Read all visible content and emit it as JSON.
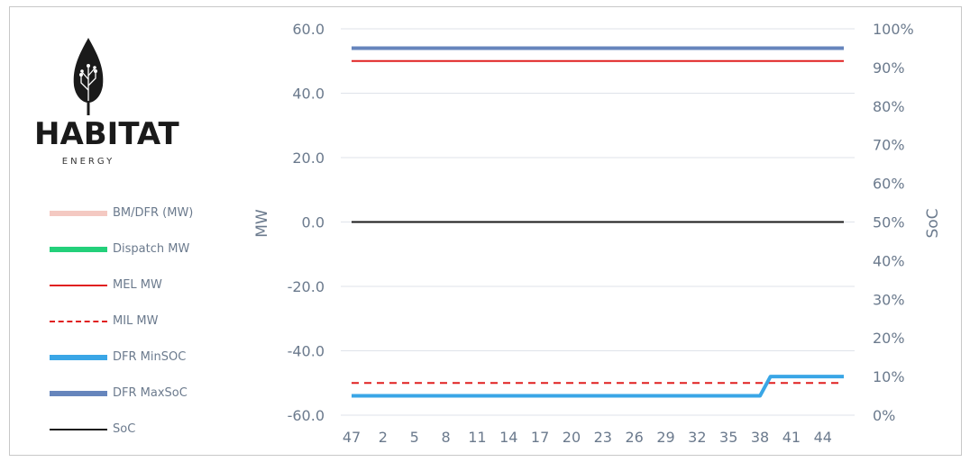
{
  "brand": {
    "name": "HABITAT",
    "subtitle": "ENERGY"
  },
  "legend": [
    {
      "label": "BM/DFR (MW)",
      "color": "#f4c9c2",
      "style": "thick"
    },
    {
      "label": "Dispatch MW",
      "color": "#23d07a",
      "style": "thick"
    },
    {
      "label": "MEL MW",
      "color": "#e02020",
      "style": "solid"
    },
    {
      "label": "MIL MW",
      "color": "#e02020",
      "style": "dashed"
    },
    {
      "label": "DFR MinSOC",
      "color": "#3aa6e6",
      "style": "thick"
    },
    {
      "label": "DFR MaxSoC",
      "color": "#6685bc",
      "style": "thick"
    },
    {
      "label": "SoC",
      "color": "#1a1a1a",
      "style": "solid"
    }
  ],
  "chart_data": {
    "type": "line",
    "title": "",
    "ylabel": "MW",
    "y2label": "SoC",
    "ylim": [
      -60,
      60
    ],
    "y2lim": [
      0,
      100
    ],
    "yticks": [
      "60.0",
      "40.0",
      "20.0",
      "0.0",
      "-20.0",
      "-40.0",
      "-60.0"
    ],
    "y2ticks": [
      "100%",
      "90%",
      "80%",
      "70%",
      "60%",
      "50%",
      "40%",
      "30%",
      "20%",
      "10%",
      "0%"
    ],
    "xticks": [
      "47",
      "2",
      "5",
      "8",
      "11",
      "14",
      "17",
      "20",
      "23",
      "26",
      "29",
      "32",
      "35",
      "38",
      "41",
      "44"
    ],
    "x_count": 48,
    "series": [
      {
        "name": "DFR MaxSoC",
        "axis": "right",
        "color": "#6685bc",
        "width": 4,
        "dash": "",
        "values_note": "constant",
        "points": [
          [
            0,
            95
          ],
          [
            47,
            95
          ]
        ]
      },
      {
        "name": "MEL MW",
        "axis": "left",
        "color": "#e02020",
        "width": 2,
        "dash": "",
        "points": [
          [
            0,
            50
          ],
          [
            47,
            50
          ]
        ]
      },
      {
        "name": "SoC",
        "axis": "right",
        "color": "#1a1a1a",
        "width": 2,
        "dash": "",
        "points": [
          [
            0,
            50
          ],
          [
            47,
            50
          ]
        ]
      },
      {
        "name": "MIL MW",
        "axis": "left",
        "color": "#e02020",
        "width": 2,
        "dash": "8,6",
        "points": [
          [
            0,
            -50
          ],
          [
            47,
            -50
          ]
        ]
      },
      {
        "name": "DFR MinSOC",
        "axis": "right",
        "color": "#3aa6e6",
        "width": 4,
        "dash": "",
        "points": [
          [
            0,
            5
          ],
          [
            39,
            5
          ],
          [
            40,
            10
          ],
          [
            47,
            10
          ]
        ]
      }
    ]
  }
}
